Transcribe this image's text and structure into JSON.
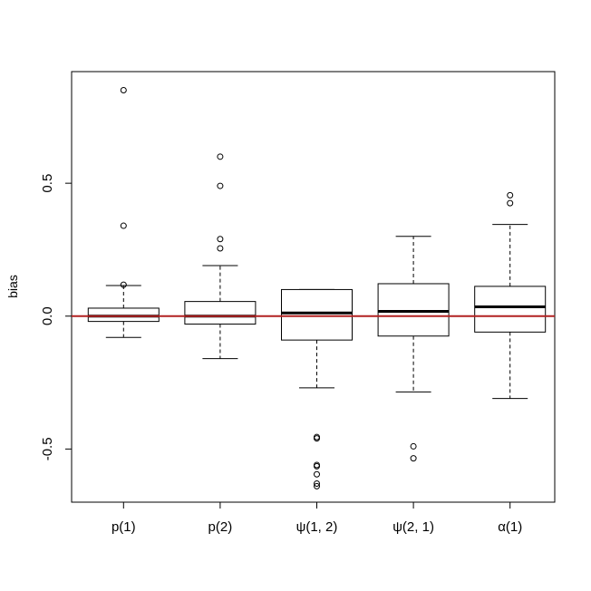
{
  "chart_data": {
    "type": "boxplot",
    "title": "",
    "xlabel": "",
    "ylabel": "bias",
    "ylim": [
      -0.7,
      0.92
    ],
    "yticks": [
      -0.5,
      0.0,
      0.5
    ],
    "ytick_labels": [
      "-0.5",
      "0.0",
      "0.5"
    ],
    "grid": false,
    "categories": [
      "p(1)",
      "p(2)",
      "ψ(1, 2)",
      "ψ(2, 1)",
      "α(1)"
    ],
    "boxes": [
      {
        "whisker_low": -0.08,
        "q1": -0.02,
        "median": 0.0,
        "q3": 0.03,
        "whisker_high": 0.115,
        "outliers": [
          0.85,
          0.34,
          0.118
        ]
      },
      {
        "whisker_low": -0.16,
        "q1": -0.03,
        "median": 0.0,
        "q3": 0.055,
        "whisker_high": 0.19,
        "outliers": [
          0.6,
          0.49,
          0.29,
          0.255
        ]
      },
      {
        "whisker_low": -0.27,
        "q1": -0.09,
        "median": 0.012,
        "q3": 0.1,
        "whisker_high": 0.1,
        "outliers": [
          -0.455,
          -0.46,
          -0.56,
          -0.565,
          -0.595,
          -0.63,
          -0.64
        ]
      },
      {
        "whisker_low": -0.285,
        "q1": -0.075,
        "median": 0.018,
        "q3": 0.122,
        "whisker_high": 0.3,
        "outliers": [
          -0.49,
          -0.535
        ]
      },
      {
        "whisker_low": -0.31,
        "q1": -0.06,
        "median": 0.035,
        "q3": 0.112,
        "whisker_high": 0.345,
        "outliers": [
          0.455,
          0.425
        ]
      }
    ],
    "reference_line": {
      "y": 0.0,
      "color": "#b22222"
    },
    "colors": {
      "box": "#000000",
      "background": "#ffffff"
    }
  }
}
